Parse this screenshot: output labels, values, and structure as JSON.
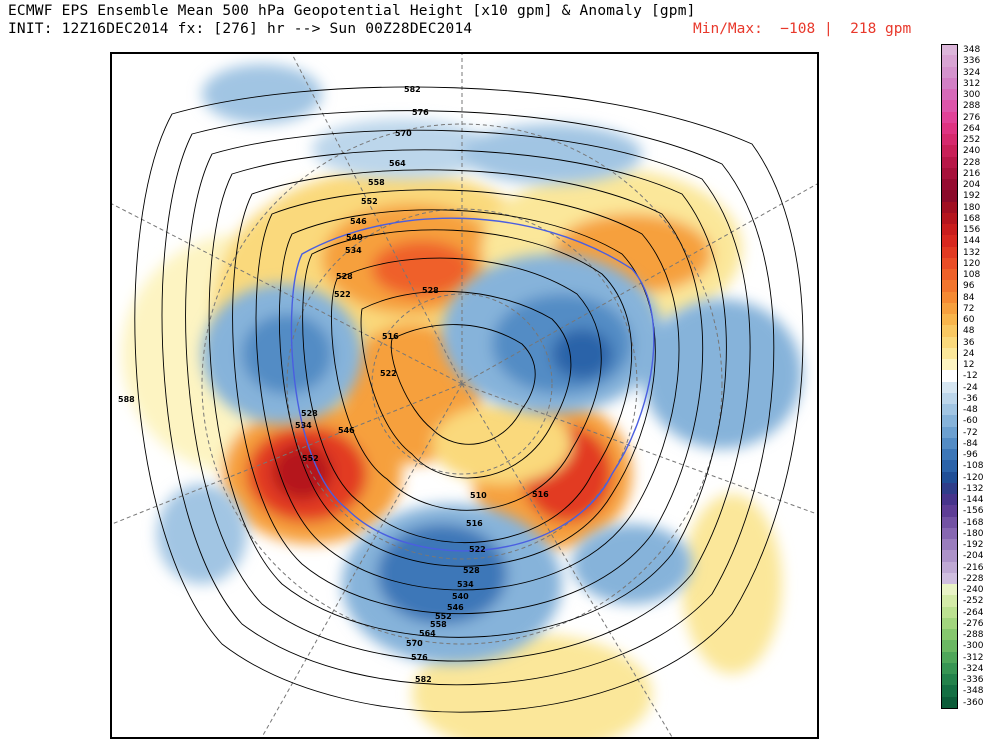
{
  "header": {
    "line1": "ECMWF EPS Ensemble Mean 500 hPa Geopotential Height [x10 gpm] & Anomaly [gpm]",
    "line2": "INIT: 12Z16DEC2014 fx: [276] hr --> Sun 00Z28DEC2014",
    "minmax": "Min/Max:  −108 |  218 gpm"
  },
  "map": {
    "height_contour_labels": [
      "582",
      "576",
      "570",
      "564",
      "558",
      "552",
      "546",
      "540",
      "534",
      "528",
      "522",
      "516",
      "528",
      "516",
      "522",
      "528",
      "534",
      "546",
      "552",
      "510",
      "516",
      "522",
      "528",
      "534",
      "540",
      "546",
      "552",
      "558",
      "564",
      "570",
      "576",
      "582",
      "588"
    ]
  },
  "legend": {
    "items": [
      {
        "label": "348",
        "color": "#dcb6da"
      },
      {
        "label": "336",
        "color": "#d8a4d3"
      },
      {
        "label": "324",
        "color": "#d493cd"
      },
      {
        "label": "312",
        "color": "#d27fc5"
      },
      {
        "label": "300",
        "color": "#d66ab9"
      },
      {
        "label": "288",
        "color": "#dd55aa"
      },
      {
        "label": "276",
        "color": "#e14298"
      },
      {
        "label": "264",
        "color": "#df3382"
      },
      {
        "label": "252",
        "color": "#d6296d"
      },
      {
        "label": "240",
        "color": "#c92058"
      },
      {
        "label": "228",
        "color": "#b81748"
      },
      {
        "label": "216",
        "color": "#a7113b"
      },
      {
        "label": "204",
        "color": "#960c31"
      },
      {
        "label": "192",
        "color": "#8b0a2a"
      },
      {
        "label": "180",
        "color": "#a10f22"
      },
      {
        "label": "168",
        "color": "#b5151e"
      },
      {
        "label": "156",
        "color": "#c91d1d"
      },
      {
        "label": "144",
        "color": "#d8281f"
      },
      {
        "label": "132",
        "color": "#e23a22"
      },
      {
        "label": "120",
        "color": "#ea4d26"
      },
      {
        "label": "108",
        "color": "#ef6129"
      },
      {
        "label": "96",
        "color": "#f2752d"
      },
      {
        "label": "84",
        "color": "#f58a33"
      },
      {
        "label": "72",
        "color": "#f6a03e"
      },
      {
        "label": "60",
        "color": "#f8b54c"
      },
      {
        "label": "48",
        "color": "#f9c862"
      },
      {
        "label": "36",
        "color": "#fad97c"
      },
      {
        "label": "24",
        "color": "#fbe79a"
      },
      {
        "label": "12",
        "color": "#fdf4c2"
      },
      {
        "label": "-12",
        "color": "#ffffff"
      },
      {
        "label": "-24",
        "color": "#d6e6f2"
      },
      {
        "label": "-36",
        "color": "#bcd6eb"
      },
      {
        "label": "-48",
        "color": "#a1c5e3"
      },
      {
        "label": "-60",
        "color": "#86b3da"
      },
      {
        "label": "-72",
        "color": "#6ca0d0"
      },
      {
        "label": "-84",
        "color": "#538cc5"
      },
      {
        "label": "-96",
        "color": "#3c77b8"
      },
      {
        "label": "-108",
        "color": "#2b63a9"
      },
      {
        "label": "-120",
        "color": "#204f97"
      },
      {
        "label": "-132",
        "color": "#2f3d8a"
      },
      {
        "label": "-144",
        "color": "#47348c"
      },
      {
        "label": "-156",
        "color": "#5e3d96"
      },
      {
        "label": "-168",
        "color": "#7352a4"
      },
      {
        "label": "-180",
        "color": "#8767b2"
      },
      {
        "label": "-192",
        "color": "#9a7dbe"
      },
      {
        "label": "-204",
        "color": "#ad93c9"
      },
      {
        "label": "-216",
        "color": "#bfa9d4"
      },
      {
        "label": "-228",
        "color": "#cfbedf"
      },
      {
        "label": "-240",
        "color": "#e9f3c6"
      },
      {
        "label": "-252",
        "color": "#d4eba8"
      },
      {
        "label": "-264",
        "color": "#bce191"
      },
      {
        "label": "-276",
        "color": "#a2d57e"
      },
      {
        "label": "-288",
        "color": "#86c76e"
      },
      {
        "label": "-300",
        "color": "#6bb863"
      },
      {
        "label": "-312",
        "color": "#4fa75a"
      },
      {
        "label": "-324",
        "color": "#379553"
      },
      {
        "label": "-336",
        "color": "#23824b"
      },
      {
        "label": "-348",
        "color": "#146f43"
      },
      {
        "label": "-360",
        "color": "#0c5c39"
      }
    ]
  }
}
